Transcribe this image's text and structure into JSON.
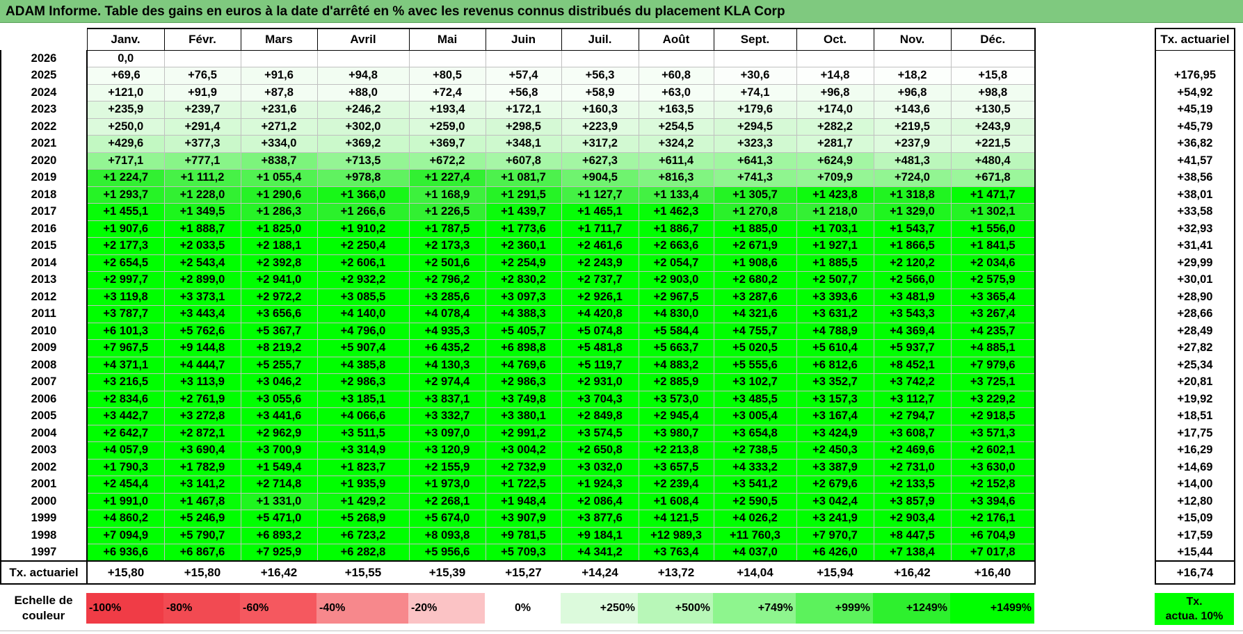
{
  "title": "ADAM Informe. Table des gains en euros à la date d'arrêté en % avec les revenus connus distribués du placement KLA Corp",
  "colors": {
    "title_bg": "#7fc97f",
    "green_max": "#00ff00",
    "red_max": "#ff0000"
  },
  "months": [
    "Janv.",
    "Févr.",
    "Mars",
    "Avril",
    "Mai",
    "Juin",
    "Juil.",
    "Août",
    "Sept.",
    "Oct.",
    "Nov.",
    "Déc."
  ],
  "side_header": "Tx. actuariel",
  "rows": [
    {
      "year": "2026",
      "values": [
        "0,0",
        "",
        "",
        "",
        "",
        "",
        "",
        "",
        "",
        "",
        "",
        ""
      ],
      "rate": ""
    },
    {
      "year": "2025",
      "values": [
        "+69,6",
        "+76,5",
        "+91,6",
        "+94,8",
        "+80,5",
        "+57,4",
        "+56,3",
        "+60,8",
        "+30,6",
        "+14,8",
        "+18,2",
        "+15,8"
      ],
      "rate": "+176,95"
    },
    {
      "year": "2024",
      "values": [
        "+121,0",
        "+91,9",
        "+87,8",
        "+88,0",
        "+72,4",
        "+56,8",
        "+58,9",
        "+63,0",
        "+74,1",
        "+96,8",
        "+96,8",
        "+98,8"
      ],
      "rate": "+54,92"
    },
    {
      "year": "2023",
      "values": [
        "+235,9",
        "+239,7",
        "+231,6",
        "+246,2",
        "+193,4",
        "+172,1",
        "+160,3",
        "+163,5",
        "+179,6",
        "+174,0",
        "+143,6",
        "+130,5"
      ],
      "rate": "+45,19"
    },
    {
      "year": "2022",
      "values": [
        "+250,0",
        "+291,4",
        "+271,2",
        "+302,0",
        "+259,0",
        "+298,5",
        "+223,9",
        "+254,5",
        "+294,5",
        "+282,2",
        "+219,5",
        "+243,9"
      ],
      "rate": "+45,79"
    },
    {
      "year": "2021",
      "values": [
        "+429,6",
        "+377,3",
        "+334,0",
        "+369,2",
        "+369,7",
        "+348,1",
        "+317,2",
        "+324,2",
        "+323,3",
        "+281,7",
        "+237,9",
        "+221,5"
      ],
      "rate": "+36,82"
    },
    {
      "year": "2020",
      "values": [
        "+717,1",
        "+777,1",
        "+838,7",
        "+713,5",
        "+672,2",
        "+607,8",
        "+627,3",
        "+611,4",
        "+641,3",
        "+624,9",
        "+481,3",
        "+480,4"
      ],
      "rate": "+41,57"
    },
    {
      "year": "2019",
      "values": [
        "+1 224,7",
        "+1 111,2",
        "+1 055,4",
        "+978,8",
        "+1 227,4",
        "+1 081,7",
        "+904,5",
        "+816,3",
        "+741,3",
        "+709,9",
        "+724,0",
        "+671,8"
      ],
      "rate": "+38,56"
    },
    {
      "year": "2018",
      "values": [
        "+1 293,7",
        "+1 228,0",
        "+1 290,6",
        "+1 366,0",
        "+1 168,9",
        "+1 291,5",
        "+1 127,7",
        "+1 133,4",
        "+1 305,7",
        "+1 423,8",
        "+1 318,8",
        "+1 471,7"
      ],
      "rate": "+38,01"
    },
    {
      "year": "2017",
      "values": [
        "+1 455,1",
        "+1 349,5",
        "+1 286,3",
        "+1 266,6",
        "+1 226,5",
        "+1 439,7",
        "+1 465,1",
        "+1 462,3",
        "+1 270,8",
        "+1 218,0",
        "+1 329,0",
        "+1 302,1"
      ],
      "rate": "+33,58"
    },
    {
      "year": "2016",
      "values": [
        "+1 907,6",
        "+1 888,7",
        "+1 825,0",
        "+1 910,2",
        "+1 787,5",
        "+1 773,6",
        "+1 711,7",
        "+1 886,7",
        "+1 885,0",
        "+1 703,1",
        "+1 543,7",
        "+1 556,0"
      ],
      "rate": "+32,93"
    },
    {
      "year": "2015",
      "values": [
        "+2 177,3",
        "+2 033,5",
        "+2 188,1",
        "+2 250,4",
        "+2 173,3",
        "+2 360,1",
        "+2 461,6",
        "+2 663,6",
        "+2 671,9",
        "+1 927,1",
        "+1 866,5",
        "+1 841,5"
      ],
      "rate": "+31,41"
    },
    {
      "year": "2014",
      "values": [
        "+2 654,5",
        "+2 543,4",
        "+2 392,8",
        "+2 606,1",
        "+2 501,6",
        "+2 254,9",
        "+2 243,9",
        "+2 054,7",
        "+1 908,6",
        "+1 885,5",
        "+2 120,2",
        "+2 034,6"
      ],
      "rate": "+29,99"
    },
    {
      "year": "2013",
      "values": [
        "+2 997,7",
        "+2 899,0",
        "+2 941,0",
        "+2 932,2",
        "+2 796,2",
        "+2 830,2",
        "+2 737,7",
        "+2 903,0",
        "+2 680,2",
        "+2 507,7",
        "+2 566,0",
        "+2 575,9"
      ],
      "rate": "+30,01"
    },
    {
      "year": "2012",
      "values": [
        "+3 119,8",
        "+3 373,1",
        "+2 972,2",
        "+3 085,5",
        "+3 285,6",
        "+3 097,3",
        "+2 926,1",
        "+2 967,5",
        "+3 287,6",
        "+3 393,6",
        "+3 481,9",
        "+3 365,4"
      ],
      "rate": "+28,90"
    },
    {
      "year": "2011",
      "values": [
        "+3 787,7",
        "+3 443,4",
        "+3 656,6",
        "+4 140,0",
        "+4 078,4",
        "+4 388,3",
        "+4 420,8",
        "+4 830,0",
        "+4 321,6",
        "+3 631,2",
        "+3 543,3",
        "+3 267,4"
      ],
      "rate": "+28,66"
    },
    {
      "year": "2010",
      "values": [
        "+6 101,3",
        "+5 762,6",
        "+5 367,7",
        "+4 796,0",
        "+4 935,3",
        "+5 405,7",
        "+5 074,8",
        "+5 584,4",
        "+4 755,7",
        "+4 788,9",
        "+4 369,4",
        "+4 235,7"
      ],
      "rate": "+28,49"
    },
    {
      "year": "2009",
      "values": [
        "+7 967,5",
        "+9 144,8",
        "+8 219,2",
        "+5 907,4",
        "+6 435,2",
        "+6 898,8",
        "+5 481,8",
        "+5 663,7",
        "+5 020,5",
        "+5 610,4",
        "+5 937,7",
        "+4 885,1"
      ],
      "rate": "+27,82"
    },
    {
      "year": "2008",
      "values": [
        "+4 371,1",
        "+4 444,7",
        "+5 255,7",
        "+4 385,8",
        "+4 130,3",
        "+4 769,6",
        "+5 119,7",
        "+4 883,2",
        "+5 555,6",
        "+6 812,6",
        "+8 452,1",
        "+7 979,6"
      ],
      "rate": "+25,34"
    },
    {
      "year": "2007",
      "values": [
        "+3 216,5",
        "+3 113,9",
        "+3 046,2",
        "+2 986,3",
        "+2 974,4",
        "+2 986,3",
        "+2 931,0",
        "+2 885,9",
        "+3 102,7",
        "+3 352,7",
        "+3 742,2",
        "+3 725,1"
      ],
      "rate": "+20,81"
    },
    {
      "year": "2006",
      "values": [
        "+2 834,6",
        "+2 761,9",
        "+3 055,6",
        "+3 185,1",
        "+3 837,1",
        "+3 749,8",
        "+3 704,3",
        "+3 573,0",
        "+3 485,5",
        "+3 157,3",
        "+3 112,7",
        "+3 229,2"
      ],
      "rate": "+19,92"
    },
    {
      "year": "2005",
      "values": [
        "+3 442,7",
        "+3 272,8",
        "+3 441,6",
        "+4 066,6",
        "+3 332,7",
        "+3 380,1",
        "+2 849,8",
        "+2 945,4",
        "+3 005,4",
        "+3 167,4",
        "+2 794,7",
        "+2 918,5"
      ],
      "rate": "+18,51"
    },
    {
      "year": "2004",
      "values": [
        "+2 642,7",
        "+2 872,1",
        "+2 962,9",
        "+3 511,5",
        "+3 097,0",
        "+2 991,2",
        "+3 574,5",
        "+3 980,7",
        "+3 654,8",
        "+3 424,9",
        "+3 608,7",
        "+3 571,3"
      ],
      "rate": "+17,75"
    },
    {
      "year": "2003",
      "values": [
        "+4 057,9",
        "+3 690,4",
        "+3 700,9",
        "+3 314,9",
        "+3 120,9",
        "+3 004,2",
        "+2 650,8",
        "+2 213,8",
        "+2 738,5",
        "+2 450,3",
        "+2 469,6",
        "+2 602,1"
      ],
      "rate": "+16,29"
    },
    {
      "year": "2002",
      "values": [
        "+1 790,3",
        "+1 782,9",
        "+1 549,4",
        "+1 823,7",
        "+2 155,9",
        "+2 732,9",
        "+3 032,0",
        "+3 657,5",
        "+4 333,2",
        "+3 387,9",
        "+2 731,0",
        "+3 630,0"
      ],
      "rate": "+14,69"
    },
    {
      "year": "2001",
      "values": [
        "+2 454,4",
        "+3 141,2",
        "+2 714,8",
        "+1 935,9",
        "+1 973,0",
        "+1 722,5",
        "+1 924,3",
        "+2 239,4",
        "+3 541,2",
        "+2 679,6",
        "+2 133,5",
        "+2 152,8"
      ],
      "rate": "+14,00"
    },
    {
      "year": "2000",
      "values": [
        "+1 991,0",
        "+1 467,8",
        "+1 331,0",
        "+1 429,2",
        "+2 268,1",
        "+1 948,4",
        "+2 086,4",
        "+1 608,4",
        "+2 590,5",
        "+3 042,4",
        "+3 857,9",
        "+3 394,6"
      ],
      "rate": "+12,80"
    },
    {
      "year": "1999",
      "values": [
        "+4 860,2",
        "+5 246,9",
        "+5 471,0",
        "+5 268,9",
        "+5 674,0",
        "+3 907,9",
        "+3 877,6",
        "+4 121,5",
        "+4 026,2",
        "+3 241,9",
        "+2 903,4",
        "+2 176,1"
      ],
      "rate": "+15,09"
    },
    {
      "year": "1998",
      "values": [
        "+7 094,9",
        "+5 790,7",
        "+6 893,2",
        "+6 723,2",
        "+8 093,8",
        "+9 781,5",
        "+9 184,1",
        "+12 989,3",
        "+11 760,3",
        "+7 970,7",
        "+8 447,5",
        "+6 704,9"
      ],
      "rate": "+17,59"
    },
    {
      "year": "1997",
      "values": [
        "+6 936,6",
        "+6 867,6",
        "+7 925,9",
        "+6 282,8",
        "+5 956,6",
        "+5 709,3",
        "+4 341,2",
        "+3 763,4",
        "+4 037,0",
        "+6 426,0",
        "+7 138,4",
        "+7 017,8"
      ],
      "rate": "+15,44"
    }
  ],
  "summary": {
    "label": "Tx. actuariel",
    "values": [
      "+15,80",
      "+15,80",
      "+16,42",
      "+15,55",
      "+15,39",
      "+15,27",
      "+14,24",
      "+13,72",
      "+14,04",
      "+15,94",
      "+16,42",
      "+16,40"
    ],
    "rate": "+16,74"
  },
  "legend": {
    "label_line1": "Echelle de",
    "label_line2": "couleur",
    "items": [
      {
        "label": "-100%",
        "color": "#f03c46",
        "align": "left"
      },
      {
        "label": "-80%",
        "color": "#f24a52",
        "align": "left"
      },
      {
        "label": "-60%",
        "color": "#f5585f",
        "align": "left"
      },
      {
        "label": "-40%",
        "color": "#f7888c",
        "align": "left"
      },
      {
        "label": "-20%",
        "color": "#fbc3c5",
        "align": "left"
      },
      {
        "label": "0%",
        "color": "#ffffff",
        "align": "center"
      },
      {
        "label": "+250%",
        "color": "#dcfadc",
        "align": "right"
      },
      {
        "label": "+500%",
        "color": "#b8f7b8",
        "align": "right"
      },
      {
        "label": "+749%",
        "color": "#8ef58e",
        "align": "right"
      },
      {
        "label": "+999%",
        "color": "#5cf25c",
        "align": "right"
      },
      {
        "label": "+1249%",
        "color": "#2ef02e",
        "align": "right"
      },
      {
        "label": "+1499%",
        "color": "#00ff00",
        "align": "right"
      }
    ],
    "actua_line1": "Tx.",
    "actua_line2": "actua. 10%"
  }
}
